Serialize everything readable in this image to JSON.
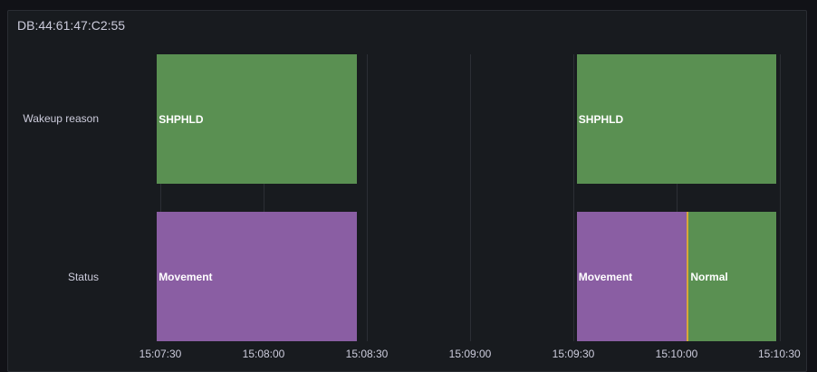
{
  "panel": {
    "title": "DB:44:61:47:C2:55"
  },
  "colors": {
    "shphld": "#5a9052",
    "movement": "#8a5ea3",
    "normal": "#5a9052",
    "transition": "#d8a83a"
  },
  "chart_data": {
    "type": "state-timeline",
    "rows": [
      {
        "label": "Wakeup reason",
        "segments": [
          {
            "state": "SHPHLD",
            "start": "15:07:29",
            "end": "15:08:27"
          },
          {
            "state": "SHPHLD",
            "start": "15:09:31",
            "end": "15:10:29"
          }
        ]
      },
      {
        "label": "Status",
        "segments": [
          {
            "state": "Movement",
            "start": "15:07:29",
            "end": "15:08:27"
          },
          {
            "state": "Movement",
            "start": "15:09:31",
            "end": "15:10:03"
          },
          {
            "state": "Normal",
            "start": "15:10:03",
            "end": "15:10:29"
          }
        ]
      }
    ],
    "x_ticks": [
      "15:07:30",
      "15:08:00",
      "15:08:30",
      "15:09:00",
      "15:09:30",
      "15:10:00",
      "15:10:30"
    ],
    "grid": true
  }
}
